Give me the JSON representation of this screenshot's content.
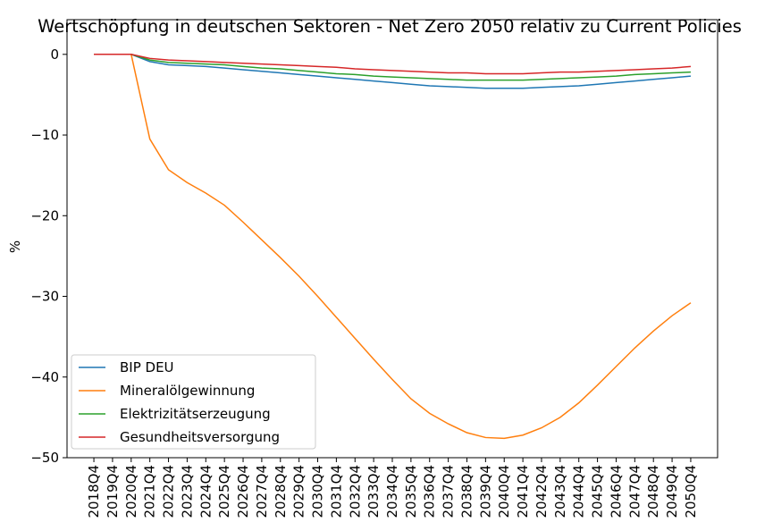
{
  "chart_data": {
    "type": "line",
    "title": "Wertschöpfung in deutschen Sektoren - Net Zero 2050 relativ zu Current Policies",
    "y_label": "%",
    "categories": [
      "2018Q4",
      "2019Q4",
      "2020Q4",
      "2021Q4",
      "2022Q4",
      "2023Q4",
      "2024Q4",
      "2025Q4",
      "2026Q4",
      "2027Q4",
      "2028Q4",
      "2029Q4",
      "2030Q4",
      "2031Q4",
      "2032Q4",
      "2033Q4",
      "2034Q4",
      "2035Q4",
      "2036Q4",
      "2037Q4",
      "2038Q4",
      "2039Q4",
      "2040Q4",
      "2041Q4",
      "2042Q4",
      "2043Q4",
      "2044Q4",
      "2045Q4",
      "2046Q4",
      "2047Q4",
      "2048Q4",
      "2049Q4",
      "2050Q4"
    ],
    "series": [
      {
        "name": "BIP DEU",
        "color": "#1f77b4",
        "values": [
          0,
          0,
          0,
          -0.9,
          -1.3,
          -1.4,
          -1.5,
          -1.7,
          -1.9,
          -2.1,
          -2.3,
          -2.5,
          -2.7,
          -2.9,
          -3.1,
          -3.3,
          -3.5,
          -3.7,
          -3.9,
          -4.0,
          -4.1,
          -4.2,
          -4.2,
          -4.2,
          -4.1,
          -4.0,
          -3.9,
          -3.7,
          -3.5,
          -3.3,
          -3.1,
          -2.9,
          -2.7
        ]
      },
      {
        "name": "Mineralölgewinnung",
        "color": "#ff7f0e",
        "values": [
          0,
          0,
          0,
          -10.5,
          -14.3,
          -15.9,
          -17.2,
          -18.7,
          -20.8,
          -23.0,
          -25.2,
          -27.5,
          -30.0,
          -32.6,
          -35.2,
          -37.8,
          -40.3,
          -42.7,
          -44.5,
          -45.8,
          -46.9,
          -47.5,
          -47.6,
          -47.2,
          -46.3,
          -45.0,
          -43.2,
          -41.0,
          -38.7,
          -36.4,
          -34.3,
          -32.4,
          -30.8
        ]
      },
      {
        "name": "Elektrizitätserzeugung",
        "color": "#2ca02c",
        "values": [
          0,
          0,
          0,
          -0.7,
          -1.0,
          -1.1,
          -1.2,
          -1.3,
          -1.5,
          -1.7,
          -1.8,
          -2.0,
          -2.2,
          -2.4,
          -2.5,
          -2.7,
          -2.8,
          -2.9,
          -3.0,
          -3.1,
          -3.2,
          -3.2,
          -3.2,
          -3.2,
          -3.1,
          -3.0,
          -2.9,
          -2.8,
          -2.7,
          -2.5,
          -2.4,
          -2.3,
          -2.2
        ]
      },
      {
        "name": "Gesundheitsversorgung",
        "color": "#d62728",
        "values": [
          0,
          0,
          0,
          -0.5,
          -0.7,
          -0.8,
          -0.9,
          -1.0,
          -1.1,
          -1.2,
          -1.3,
          -1.4,
          -1.5,
          -1.6,
          -1.8,
          -1.9,
          -2.0,
          -2.1,
          -2.2,
          -2.3,
          -2.3,
          -2.4,
          -2.4,
          -2.4,
          -2.3,
          -2.2,
          -2.2,
          -2.1,
          -2.0,
          -1.9,
          -1.8,
          -1.7,
          -1.5
        ]
      }
    ],
    "ylim": [
      -50,
      4.3
    ],
    "yticks": [
      {
        "value": -50,
        "label": "−50"
      },
      {
        "value": -40,
        "label": "−40"
      },
      {
        "value": -30,
        "label": "−30"
      },
      {
        "value": -20,
        "label": "−20"
      },
      {
        "value": -10,
        "label": "−10"
      },
      0
    ],
    "grid": false,
    "legend": "lower left"
  }
}
